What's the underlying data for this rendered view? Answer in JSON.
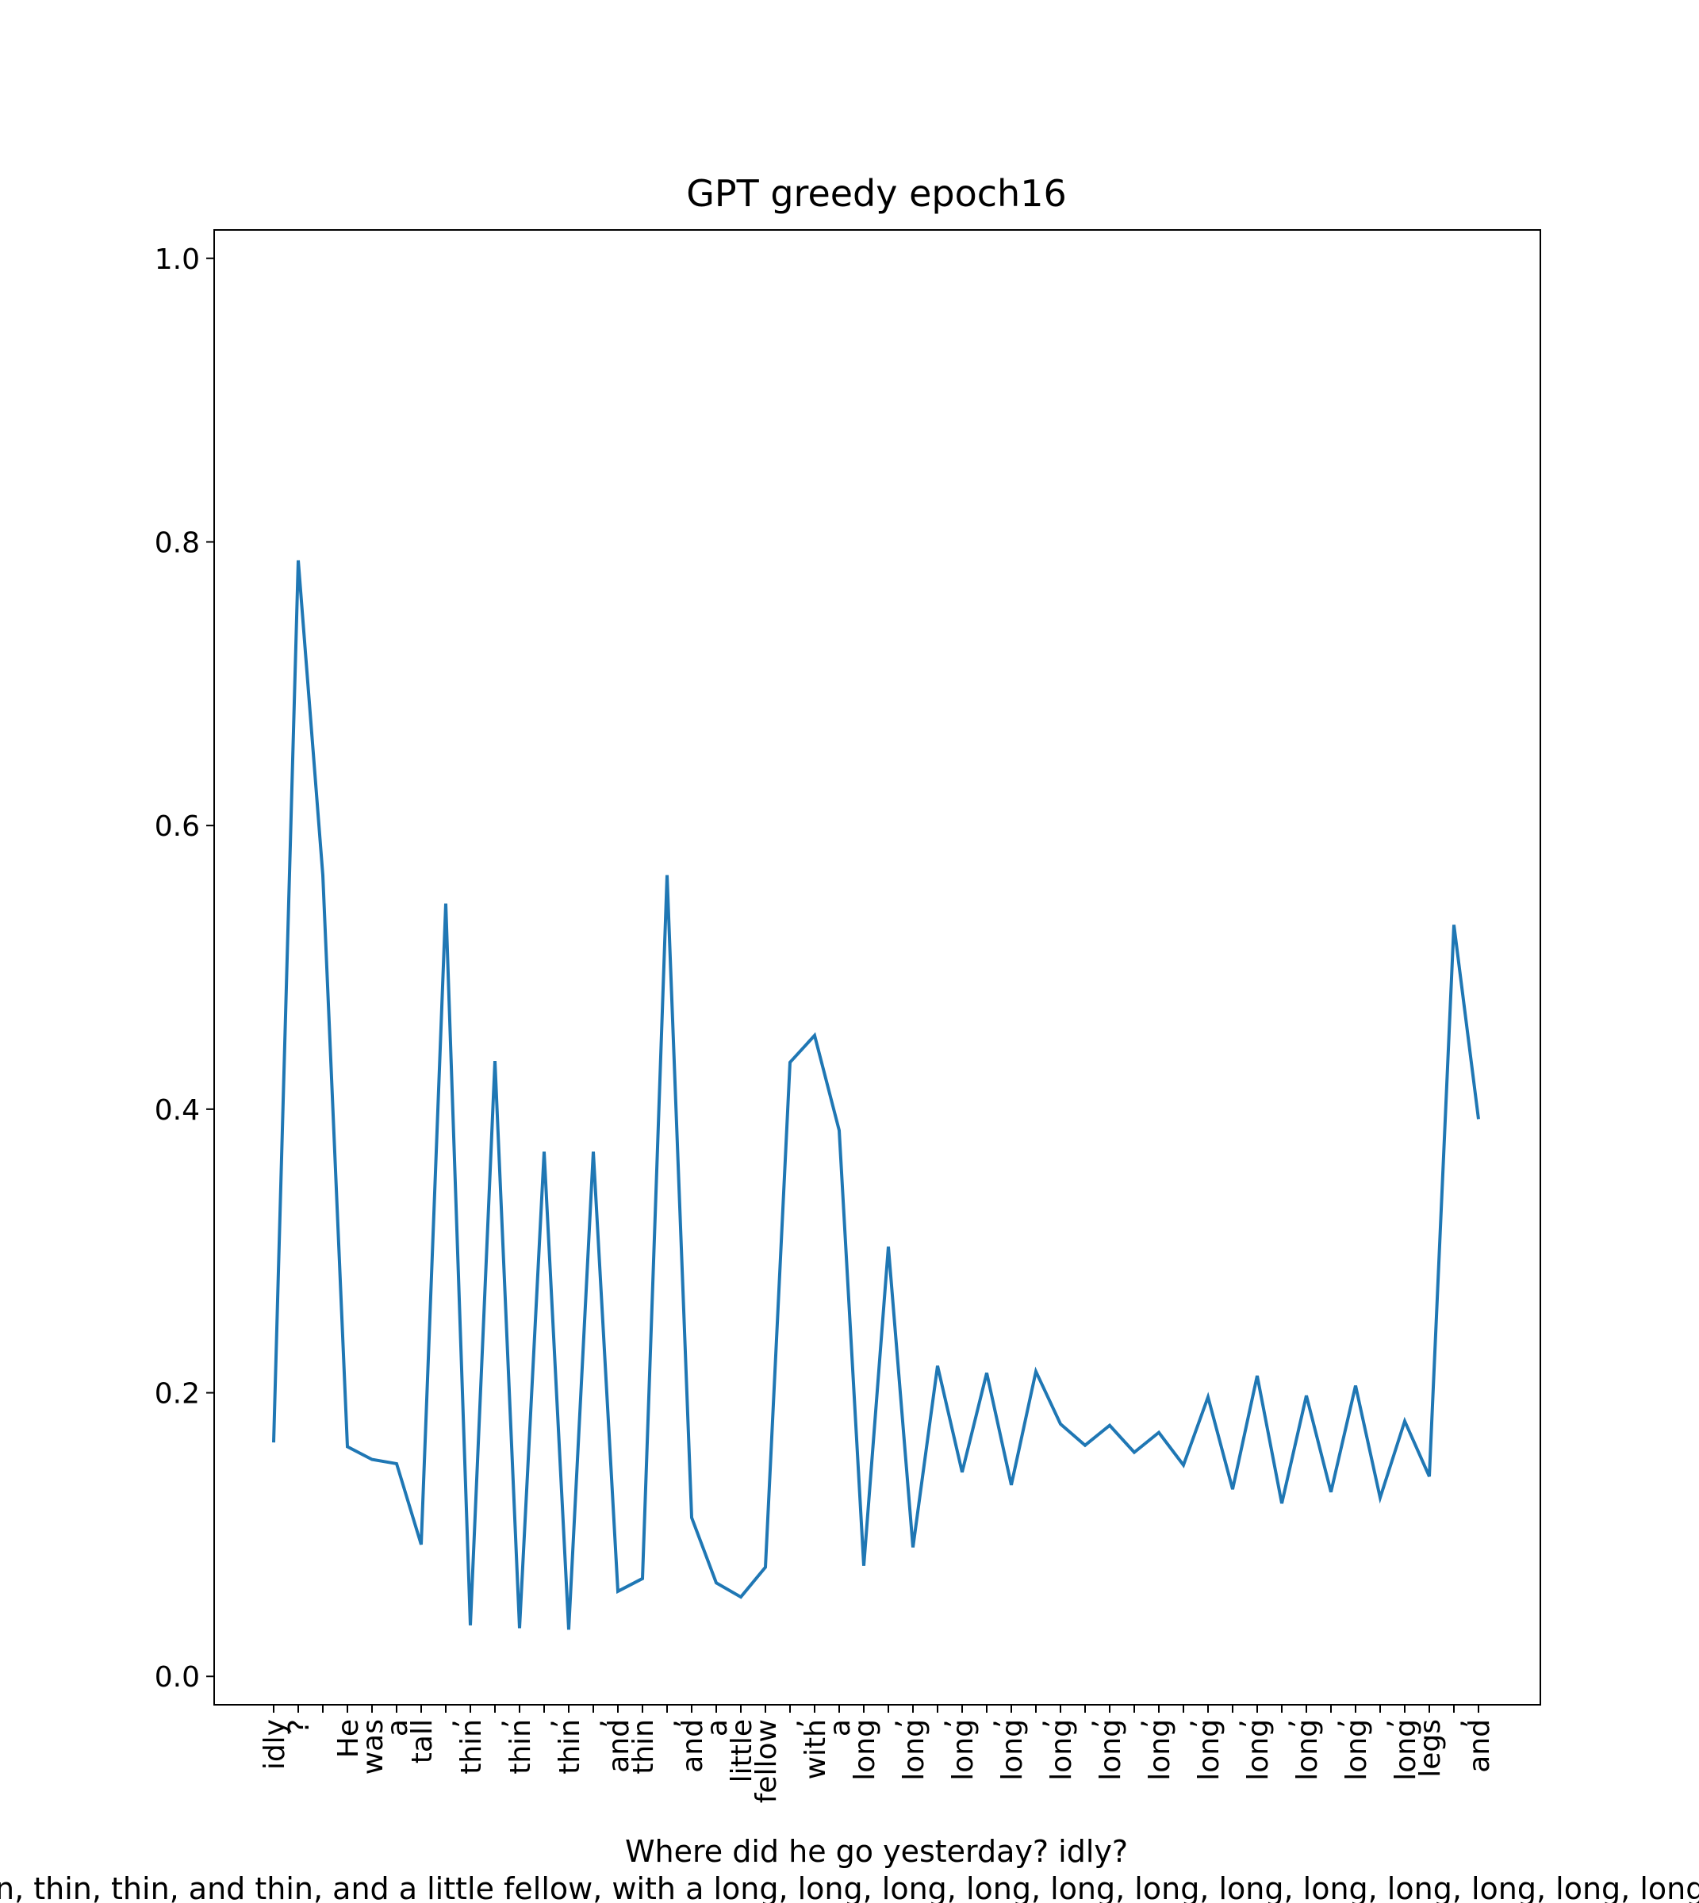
{
  "chart_data": {
    "type": "line",
    "title": "GPT greedy epoch16",
    "x_label": [
      "Where did he go yesterday? idly?",
      "n, thin, thin, and thin, and a little fellow, with a long, long, long, long, long, long, long, long, long, long, long, long,"
    ],
    "categories": [
      "idly",
      "?",
      null,
      "He",
      "was",
      "a",
      "tall",
      ",",
      "thin",
      ",",
      "thin",
      ",",
      "thin",
      ",",
      "and",
      "thin",
      ",",
      "and",
      "a",
      "little",
      "fellow",
      ",",
      "with",
      "a",
      "long",
      ",",
      "long",
      ",",
      "long",
      ",",
      "long",
      ",",
      "long",
      ",",
      "long",
      ",",
      "long",
      ",",
      "long",
      ",",
      "long",
      ",",
      "long",
      ",",
      "long",
      ",",
      "long",
      "legs",
      ",",
      "and"
    ],
    "series": [
      {
        "name": "probability",
        "color": "#1f77b4",
        "values": [
          0.165,
          0.787,
          0.565,
          0.162,
          0.153,
          0.15,
          0.093,
          0.545,
          0.036,
          0.434,
          0.034,
          0.37,
          0.033,
          0.37,
          0.06,
          0.069,
          0.565,
          0.112,
          0.066,
          0.056,
          0.077,
          0.433,
          0.452,
          0.385,
          0.078,
          0.303,
          0.091,
          0.219,
          0.144,
          0.214,
          0.135,
          0.215,
          0.178,
          0.163,
          0.177,
          0.158,
          0.172,
          0.149,
          0.197,
          0.132,
          0.212,
          0.122,
          0.198,
          0.13,
          0.205,
          0.126,
          0.18,
          0.141,
          0.53,
          0.393
        ]
      }
    ],
    "ylim": [
      -0.02,
      1.02
    ],
    "yticks": [
      {
        "value": 0,
        "label": "0.0"
      },
      0.2,
      0.4,
      0.6,
      0.8,
      {
        "value": 1,
        "label": "1.0"
      }
    ]
  }
}
